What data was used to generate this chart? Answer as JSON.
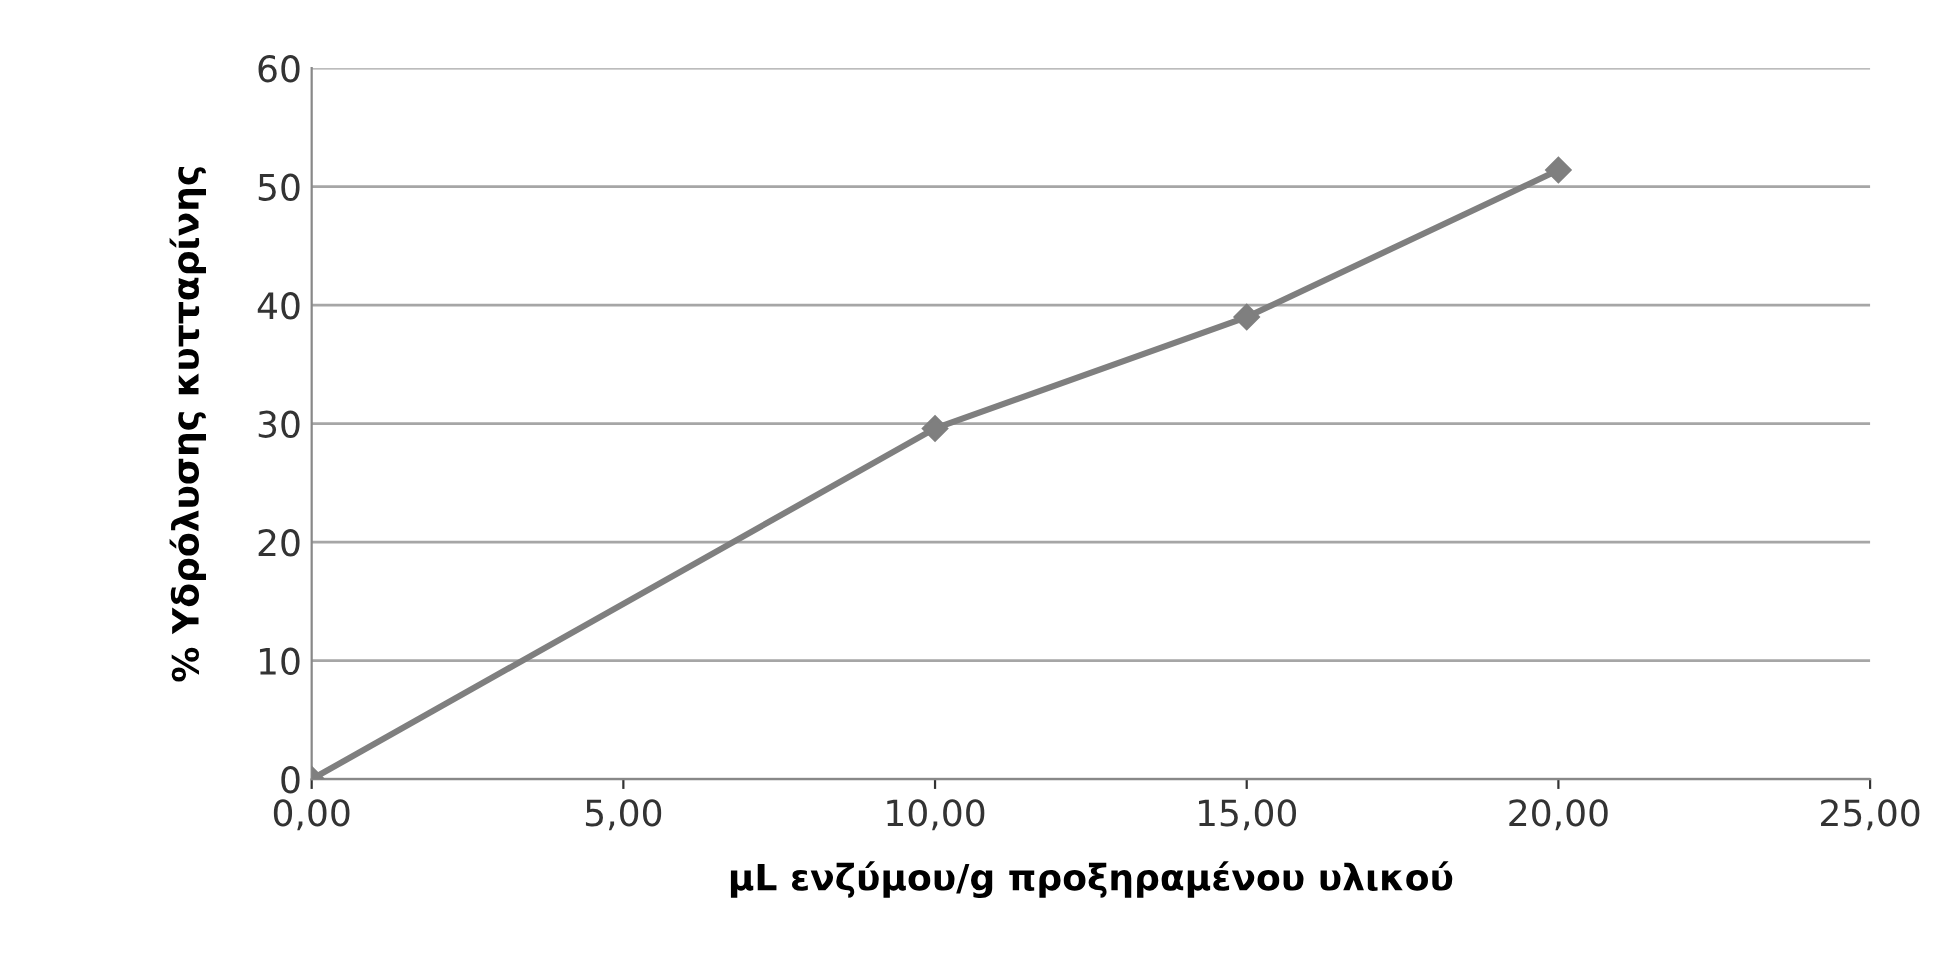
{
  "chart_data": {
    "type": "line",
    "xlabel": "μL ενζύμου/g προξηραμένου υλικού",
    "ylabel": "% Υδρόλυσης κυτταρίνης",
    "x": [
      0,
      10,
      15,
      20
    ],
    "series": [
      {
        "color": "#7f7f7f",
        "values": [
          0,
          29.6,
          39,
          51.4
        ]
      }
    ],
    "xlim": [
      0,
      25
    ],
    "xticks": [
      {
        "value": 0,
        "label": "0,00"
      },
      {
        "value": 5,
        "label": "5,00"
      },
      {
        "value": 10,
        "label": "10,00"
      },
      {
        "value": 15,
        "label": "15,00"
      },
      {
        "value": 20,
        "label": "20,00"
      },
      {
        "value": 25,
        "label": "25,00"
      }
    ],
    "ylim": [
      0,
      60
    ],
    "yticks": [
      0,
      10,
      20,
      30,
      40,
      50,
      60
    ],
    "grid": "y",
    "marker": "diamond",
    "line_style": "solid",
    "legend": false
  }
}
